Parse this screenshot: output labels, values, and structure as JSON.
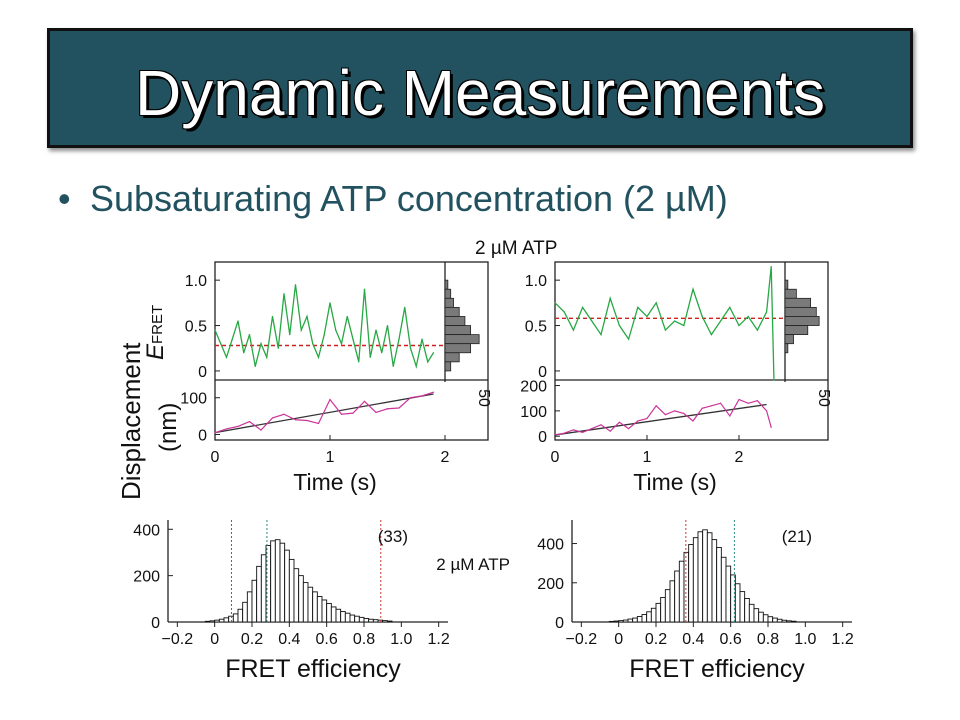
{
  "slide": {
    "title": "Dynamic Measurements",
    "bullet": "Subsaturating ATP concentration (2 µM)",
    "bullet_marker": "•"
  },
  "colors": {
    "title_bg": "#22525f",
    "bullet_text": "#22525f",
    "fret_trace": "#27a844",
    "displacement_trace": "#cc3399",
    "mean_line": "#d02020",
    "marker_red": "#cc3333",
    "marker_teal": "#2a8a80",
    "histogram_fill": "#7a7a7a"
  },
  "figure": {
    "condition_label": "2 µM ATP",
    "fret_axis_label_E": "E",
    "fret_axis_label_sub": "FRET",
    "displacement_label": "Displacement",
    "displacement_unit": "(nm)",
    "time_label": "Time (s)",
    "fret_ticks": [
      "1.0",
      "0.5",
      "0"
    ],
    "time_ticks": [
      "0",
      "1",
      "2"
    ],
    "side_hist_tick": "50"
  },
  "chart_data": [
    {
      "type": "line",
      "panel": "trace-left",
      "xlabel": "Time (s)",
      "xlim": [
        0,
        2
      ],
      "fret": {
        "ylabel": "EFRET",
        "ylim": [
          -0.1,
          1.2
        ],
        "mean": 0.28,
        "x": [
          0,
          0.05,
          0.1,
          0.15,
          0.2,
          0.25,
          0.3,
          0.35,
          0.4,
          0.45,
          0.5,
          0.55,
          0.6,
          0.65,
          0.7,
          0.75,
          0.8,
          0.85,
          0.9,
          0.95,
          1.0,
          1.05,
          1.1,
          1.15,
          1.2,
          1.25,
          1.3,
          1.35,
          1.4,
          1.45,
          1.5,
          1.55,
          1.6,
          1.65,
          1.7,
          1.75,
          1.8,
          1.85,
          1.9
        ],
        "values": [
          0.45,
          0.3,
          0.15,
          0.35,
          0.55,
          0.2,
          0.4,
          0.05,
          0.3,
          0.15,
          0.6,
          0.25,
          0.85,
          0.4,
          0.95,
          0.45,
          0.6,
          0.3,
          0.15,
          0.4,
          0.75,
          0.45,
          0.3,
          0.6,
          0.35,
          0.1,
          0.9,
          0.15,
          0.45,
          0.2,
          0.5,
          0.05,
          0.35,
          0.7,
          0.25,
          0.05,
          0.35,
          0.1,
          0.2
        ]
      },
      "displacement": {
        "ylabel": "Displacement (nm)",
        "yticks": [
          0,
          100
        ],
        "ylim": [
          -15,
          140
        ],
        "fit_line": [
          [
            0,
            5
          ],
          [
            1.9,
            110
          ]
        ],
        "x": [
          0,
          0.1,
          0.2,
          0.3,
          0.4,
          0.5,
          0.6,
          0.7,
          0.8,
          0.9,
          1.0,
          1.1,
          1.2,
          1.3,
          1.4,
          1.5,
          1.6,
          1.7,
          1.8,
          1.9
        ],
        "values": [
          5,
          15,
          22,
          35,
          12,
          45,
          55,
          40,
          38,
          30,
          95,
          55,
          58,
          90,
          60,
          70,
          72,
          100,
          105,
          115
        ]
      },
      "side_histogram": {
        "x_tick": "50",
        "bins": [
          0.9,
          0.8,
          0.7,
          0.6,
          0.5,
          0.4,
          0.3,
          0.2,
          0.1,
          0.0
        ],
        "counts": [
          5,
          10,
          15,
          25,
          35,
          45,
          60,
          45,
          25,
          10
        ]
      }
    },
    {
      "type": "line",
      "panel": "trace-right",
      "xlabel": "Time (s)",
      "xlim": [
        0,
        2.5
      ],
      "fret": {
        "ylabel": "EFRET",
        "ylim": [
          -0.1,
          1.2
        ],
        "mean": 0.58,
        "x": [
          0,
          0.1,
          0.2,
          0.3,
          0.4,
          0.5,
          0.6,
          0.7,
          0.8,
          0.9,
          1.0,
          1.1,
          1.2,
          1.3,
          1.4,
          1.5,
          1.6,
          1.7,
          1.8,
          1.9,
          2.0,
          2.1,
          2.2,
          2.3,
          2.35,
          2.38
        ],
        "values": [
          0.75,
          0.65,
          0.45,
          0.7,
          0.55,
          0.4,
          0.8,
          0.5,
          0.35,
          0.7,
          0.6,
          0.75,
          0.45,
          0.55,
          0.5,
          0.9,
          0.6,
          0.4,
          0.55,
          0.7,
          0.5,
          0.6,
          0.45,
          0.65,
          1.15,
          -0.1
        ]
      },
      "displacement": {
        "ylabel": "",
        "yticks": [
          0,
          100,
          200
        ],
        "ylim": [
          -15,
          210
        ],
        "fit_line": [
          [
            0,
            5
          ],
          [
            2.3,
            125
          ]
        ],
        "x": [
          0,
          0.1,
          0.2,
          0.3,
          0.4,
          0.5,
          0.6,
          0.7,
          0.8,
          0.9,
          1.0,
          1.1,
          1.2,
          1.3,
          1.4,
          1.5,
          1.6,
          1.7,
          1.8,
          1.9,
          2.0,
          2.1,
          2.2,
          2.3,
          2.35
        ],
        "values": [
          5,
          12,
          25,
          15,
          30,
          45,
          20,
          55,
          30,
          60,
          70,
          120,
          85,
          100,
          90,
          60,
          110,
          120,
          130,
          80,
          145,
          130,
          140,
          100,
          35
        ]
      },
      "side_histogram": {
        "x_tick": "50",
        "bins": [
          0.9,
          0.8,
          0.7,
          0.6,
          0.5,
          0.4,
          0.3,
          0.2
        ],
        "counts": [
          5,
          20,
          45,
          55,
          60,
          40,
          15,
          5
        ]
      }
    },
    {
      "type": "bar",
      "panel": "hist-left",
      "xlabel": "FRET efficiency",
      "xticks": [
        "−0.2",
        "0",
        "0.2",
        "0.4",
        "0.6",
        "0.8",
        "1.0",
        "1.2"
      ],
      "yticks": [
        "400",
        "200",
        "0"
      ],
      "xlim": [
        -0.25,
        1.25
      ],
      "ylim": [
        0,
        440
      ],
      "annotation_count": "(33)",
      "annotation_condition": "2 µM ATP",
      "markers": [
        {
          "x": 0.09,
          "color": "red"
        },
        {
          "x": 0.28,
          "color": "teal"
        },
        {
          "x": 0.89,
          "color": "red"
        }
      ],
      "bin_width": 0.025,
      "bin_start": -0.05,
      "counts": [
        3,
        5,
        8,
        12,
        18,
        25,
        35,
        55,
        85,
        130,
        180,
        240,
        290,
        330,
        350,
        355,
        340,
        310,
        270,
        230,
        200,
        170,
        150,
        130,
        110,
        95,
        80,
        65,
        55,
        45,
        38,
        30,
        25,
        20,
        15,
        12,
        10,
        8,
        6,
        4
      ]
    },
    {
      "type": "bar",
      "panel": "hist-right",
      "xlabel": "FRET efficiency",
      "xticks": [
        "−0.2",
        "0",
        "0.2",
        "0.4",
        "0.6",
        "0.8",
        "1.0",
        "1.2"
      ],
      "yticks": [
        "400",
        "200",
        "0"
      ],
      "xlim": [
        -0.25,
        1.25
      ],
      "ylim": [
        0,
        520
      ],
      "annotation_count": "(21)",
      "markers": [
        {
          "x": 0.36,
          "color": "red"
        },
        {
          "x": 0.62,
          "color": "teal"
        }
      ],
      "bin_width": 0.025,
      "bin_start": -0.05,
      "counts": [
        3,
        5,
        7,
        10,
        15,
        20,
        28,
        38,
        52,
        70,
        95,
        125,
        165,
        210,
        260,
        310,
        355,
        395,
        430,
        460,
        470,
        455,
        420,
        380,
        330,
        285,
        240,
        195,
        155,
        120,
        90,
        68,
        50,
        37,
        27,
        20,
        14,
        9,
        6,
        4
      ]
    }
  ]
}
